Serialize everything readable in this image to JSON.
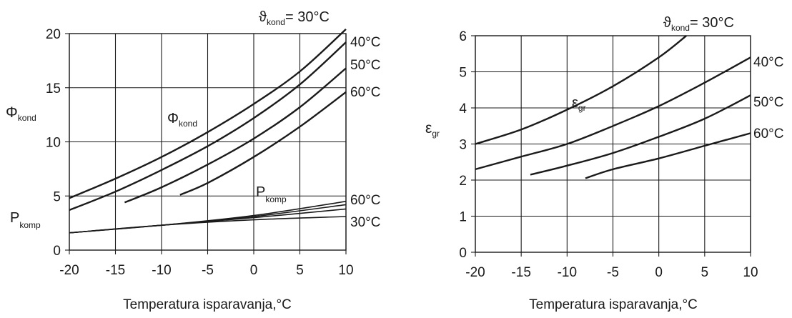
{
  "chart_data": [
    {
      "type": "line",
      "xlabel": "Temperatura isparavanja,°C",
      "ylabel": {
        "base": "Φ",
        "sub": "kond"
      },
      "xlim": [
        -20,
        10
      ],
      "ylim": [
        0,
        20
      ],
      "xticks": [
        -20,
        -15,
        -10,
        -5,
        0,
        5,
        10
      ],
      "yticks": [
        0,
        5,
        10,
        15,
        20
      ],
      "grid": true,
      "top_label": {
        "base": "ϑ",
        "sub": "kond",
        "rest": "= 30°C"
      },
      "annotations": [
        {
          "id": "phi",
          "base": "Φ",
          "sub": "kond"
        },
        {
          "id": "pkomp_in",
          "base": "P",
          "sub": "komp"
        },
        {
          "id": "pkomp_left",
          "base": "P",
          "sub": "komp"
        }
      ],
      "series_labels": [
        "40°C",
        "50°C",
        "60°C",
        "60°C",
        "30°C"
      ],
      "series": [
        {
          "group": "phi",
          "x": [
            -20,
            -15,
            -10,
            -5,
            0,
            5,
            10
          ],
          "y": [
            4.8,
            6.6,
            8.6,
            10.9,
            13.5,
            16.5,
            20.4
          ]
        },
        {
          "group": "phi",
          "x": [
            -20,
            -15,
            -10,
            -5,
            0,
            5,
            10
          ],
          "y": [
            3.7,
            5.4,
            7.4,
            9.6,
            12.2,
            15.3,
            19.2
          ]
        },
        {
          "group": "phi",
          "x": [
            -14,
            -10,
            -5,
            0,
            5,
            10
          ],
          "y": [
            4.4,
            5.8,
            7.9,
            10.3,
            13.2,
            16.8
          ]
        },
        {
          "group": "phi",
          "x": [
            -8,
            -5,
            0,
            5,
            10
          ],
          "y": [
            5.1,
            6.2,
            8.6,
            11.4,
            14.6
          ]
        },
        {
          "group": "pkomp",
          "x": [
            -20,
            -10,
            0,
            10
          ],
          "y": [
            1.6,
            2.3,
            3.2,
            4.5
          ]
        },
        {
          "group": "pkomp",
          "x": [
            -20,
            -10,
            0,
            10
          ],
          "y": [
            1.6,
            2.3,
            3.1,
            4.2
          ]
        },
        {
          "group": "pkomp",
          "x": [
            -20,
            -10,
            0,
            10
          ],
          "y": [
            1.6,
            2.3,
            3.0,
            3.8
          ]
        },
        {
          "group": "pkomp",
          "x": [
            -20,
            -10,
            0,
            10
          ],
          "y": [
            1.6,
            2.3,
            2.8,
            3.1
          ]
        }
      ]
    },
    {
      "type": "line",
      "xlabel": "Temperatura isparavanja,°C",
      "ylabel": {
        "base": "ε",
        "sub": "gr"
      },
      "xlim": [
        -20,
        10
      ],
      "ylim": [
        0,
        6
      ],
      "xticks": [
        -20,
        -15,
        -10,
        -5,
        0,
        5,
        10
      ],
      "yticks": [
        0,
        1,
        2,
        3,
        4,
        5,
        6
      ],
      "grid": true,
      "top_label": {
        "base": "ϑ",
        "sub": "kond",
        "rest": "= 30°C"
      },
      "annotations": [
        {
          "id": "eps",
          "base": "ε",
          "sub": "gr"
        }
      ],
      "series_labels": [
        "40°C",
        "50°C",
        "60°C"
      ],
      "series": [
        {
          "x": [
            -20,
            -15,
            -10,
            -5,
            0,
            3
          ],
          "y": [
            3.0,
            3.4,
            3.95,
            4.6,
            5.4,
            6.0
          ]
        },
        {
          "x": [
            -20,
            -15,
            -10,
            -5,
            0,
            5,
            10
          ],
          "y": [
            2.3,
            2.65,
            3.0,
            3.5,
            4.05,
            4.7,
            5.4
          ]
        },
        {
          "x": [
            -14,
            -10,
            -5,
            0,
            5,
            10
          ],
          "y": [
            2.15,
            2.4,
            2.75,
            3.2,
            3.7,
            4.35
          ]
        },
        {
          "x": [
            -8,
            -5,
            0,
            5,
            10
          ],
          "y": [
            2.05,
            2.3,
            2.6,
            2.95,
            3.3
          ]
        }
      ]
    }
  ]
}
